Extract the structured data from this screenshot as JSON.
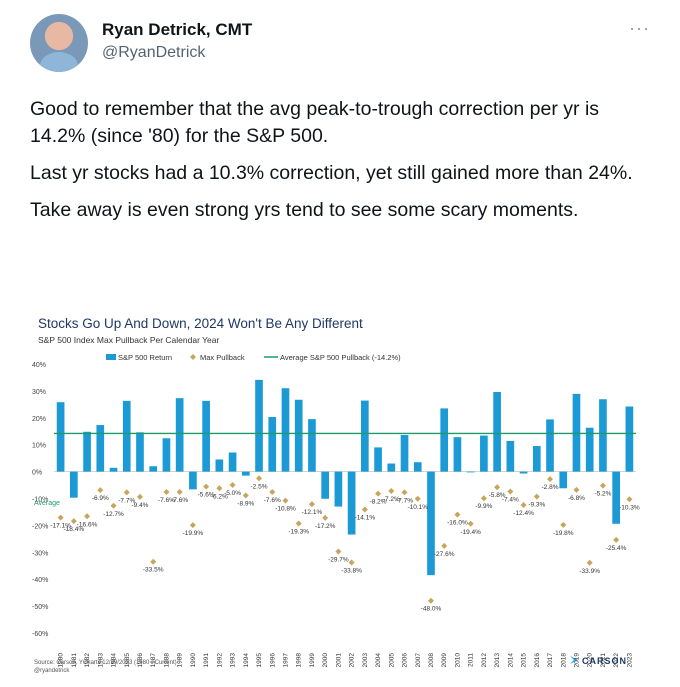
{
  "tweet": {
    "author_name": "Ryan Detrick, CMT",
    "author_handle": "@RyanDetrick",
    "more_icon": "more-dots-icon",
    "paragraphs": [
      "Good to remember that the avg peak-to-trough correction per yr is 14.2% (since '80) for the S&P 500.",
      "Last yr stocks had a 10.3% correction, yet still gained more than 24%.",
      "Take away is even strong yrs tend to see some scary moments."
    ]
  },
  "chart_data": {
    "type": "bar",
    "title": "Stocks Go Up And Down, 2024 Won't Be Any Different",
    "subtitle": "S&P 500 Index Max Pullback Per Calendar Year",
    "legend": [
      "S&P 500 Return",
      "Max Pullback",
      "Average S&P 500 Pullback (-14.2%)"
    ],
    "legend_placement": "top",
    "ylim": [
      -60,
      40
    ],
    "yticks": [
      "40%",
      "30%",
      "20%",
      "10%",
      "0%",
      "-10%",
      "-20%",
      "-30%",
      "-40%",
      "-50%",
      "-60%"
    ],
    "average_label": "Average",
    "average_value": 14.2,
    "categories": [
      "1980",
      "1981",
      "1982",
      "1983",
      "1984",
      "1985",
      "1986",
      "1987",
      "1988",
      "1989",
      "1990",
      "1991",
      "1992",
      "1993",
      "1994",
      "1995",
      "1996",
      "1997",
      "1998",
      "1999",
      "2000",
      "2001",
      "2002",
      "2003",
      "2004",
      "2005",
      "2006",
      "2007",
      "2008",
      "2009",
      "2010",
      "2011",
      "2012",
      "2013",
      "2014",
      "2015",
      "2016",
      "2017",
      "2018",
      "2019",
      "2020",
      "2021",
      "2022",
      "2023"
    ],
    "series": [
      {
        "name": "S&P 500 Return",
        "values": [
          25.8,
          -9.7,
          14.8,
          17.3,
          1.4,
          26.3,
          14.6,
          2.0,
          12.4,
          27.3,
          -6.6,
          26.3,
          4.5,
          7.1,
          -1.5,
          34.1,
          20.3,
          31.0,
          26.7,
          19.5,
          -10.1,
          -13.0,
          -23.4,
          26.4,
          9.0,
          3.0,
          13.6,
          3.5,
          -38.5,
          23.5,
          12.8,
          0.0,
          13.4,
          29.6,
          11.4,
          -0.7,
          9.5,
          19.4,
          -6.2,
          28.9,
          16.3,
          26.9,
          -19.4,
          24.2
        ]
      },
      {
        "name": "Max Pullback",
        "values": [
          -17.1,
          -18.4,
          -16.6,
          -6.9,
          -12.7,
          -7.7,
          -9.4,
          -33.5,
          -7.6,
          -7.6,
          -19.9,
          -5.6,
          -6.2,
          -5.0,
          -8.9,
          -2.5,
          -7.6,
          -10.8,
          -19.3,
          -12.1,
          -17.2,
          -29.7,
          -33.8,
          -14.1,
          -8.2,
          -7.2,
          -7.7,
          -10.1,
          -48.0,
          -27.6,
          -16.0,
          -19.4,
          -9.9,
          -5.8,
          -7.4,
          -12.4,
          -9.3,
          -2.8,
          -19.8,
          -6.8,
          -33.9,
          -5.2,
          -25.4,
          -10.3
        ]
      }
    ],
    "pullback_labels": [
      "-17.1%",
      "-18.4%",
      "-16.6%",
      "-6.9%",
      "-12.7%",
      "-7.7%",
      "-9.4%",
      "-33.5%",
      "-7.6%",
      "-7.6%",
      "-19.9%",
      "-5.6%",
      "-6.2%",
      "-5.0%",
      "-8.9%",
      "-2.5%",
      "-7.6%",
      "-10.8%",
      "-19.3%",
      "-12.1%",
      "-17.2%",
      "-29.7%",
      "-33.8%",
      "-14.1%",
      "-8.2%",
      "-7.2%",
      "-7.7%",
      "-10.1%",
      "-48.0%",
      "-27.6%",
      "-16.0%",
      "-19.4%",
      "-9.9%",
      "-5.8%",
      "-7.4%",
      "-12.4%",
      "-9.3%",
      "-2.8%",
      "-19.8%",
      "-6.8%",
      "-33.9%",
      "-5.2%",
      "-25.4%",
      "-10.3%"
    ],
    "source": "Source: Carson, YCharts 12/29/2023 (1980 - Current)",
    "source_handle": "@ryandetrick",
    "brand": "CARSON",
    "colors": {
      "bar": "#1c9ad6",
      "pullback": "#c8a55c",
      "average": "#1e9a6a",
      "title": "#1f3864"
    }
  }
}
